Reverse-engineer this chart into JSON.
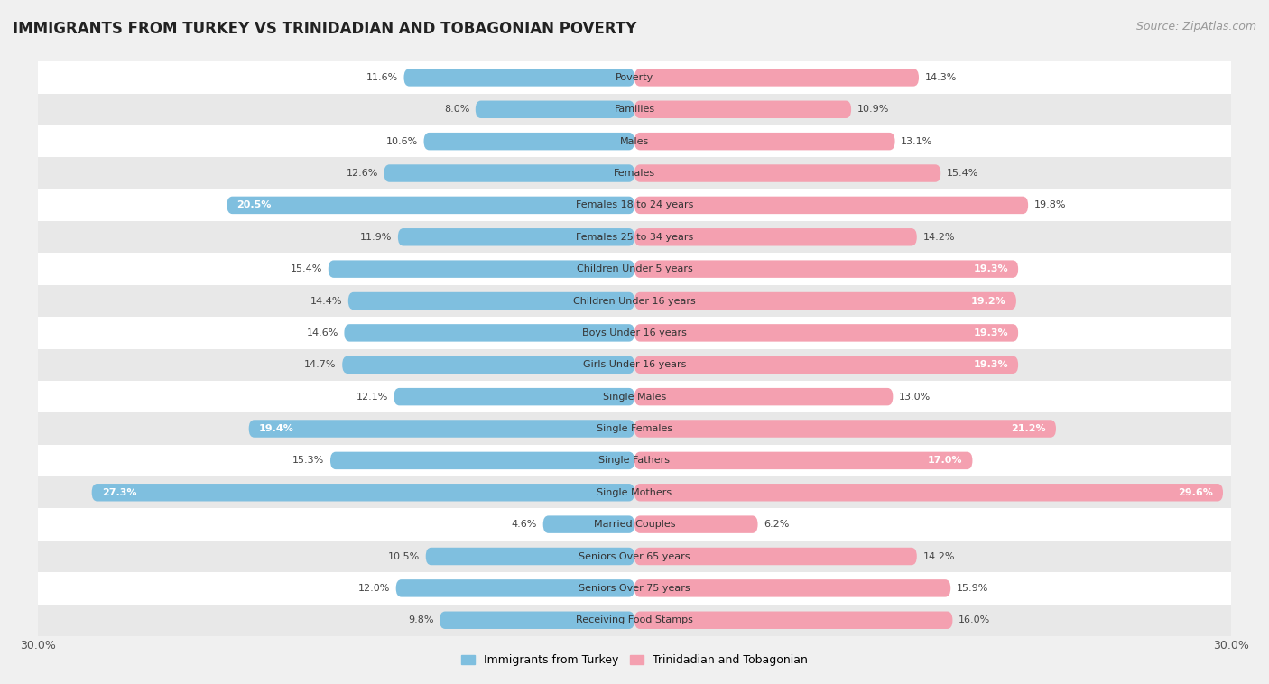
{
  "title": "IMMIGRANTS FROM TURKEY VS TRINIDADIAN AND TOBAGONIAN POVERTY",
  "source": "Source: ZipAtlas.com",
  "categories": [
    "Poverty",
    "Families",
    "Males",
    "Females",
    "Females 18 to 24 years",
    "Females 25 to 34 years",
    "Children Under 5 years",
    "Children Under 16 years",
    "Boys Under 16 years",
    "Girls Under 16 years",
    "Single Males",
    "Single Females",
    "Single Fathers",
    "Single Mothers",
    "Married Couples",
    "Seniors Over 65 years",
    "Seniors Over 75 years",
    "Receiving Food Stamps"
  ],
  "turkey_values": [
    11.6,
    8.0,
    10.6,
    12.6,
    20.5,
    11.9,
    15.4,
    14.4,
    14.6,
    14.7,
    12.1,
    19.4,
    15.3,
    27.3,
    4.6,
    10.5,
    12.0,
    9.8
  ],
  "trinidad_values": [
    14.3,
    10.9,
    13.1,
    15.4,
    19.8,
    14.2,
    19.3,
    19.2,
    19.3,
    19.3,
    13.0,
    21.2,
    17.0,
    29.6,
    6.2,
    14.2,
    15.9,
    16.0
  ],
  "turkey_color": "#7fbfdf",
  "trinidad_color": "#f4a0b0",
  "highlight_turkey": [
    4,
    11,
    13
  ],
  "highlight_trinidad": [
    6,
    7,
    8,
    9,
    11,
    12,
    13
  ],
  "xlim": 30.0,
  "background_color": "#f0f0f0",
  "row_color_even": "#ffffff",
  "row_color_odd": "#e8e8e8",
  "title_fontsize": 12,
  "source_fontsize": 9,
  "label_fontsize": 8,
  "bar_height": 0.55,
  "legend_turkey": "Immigrants from Turkey",
  "legend_trinidad": "Trinidadian and Tobagonian"
}
